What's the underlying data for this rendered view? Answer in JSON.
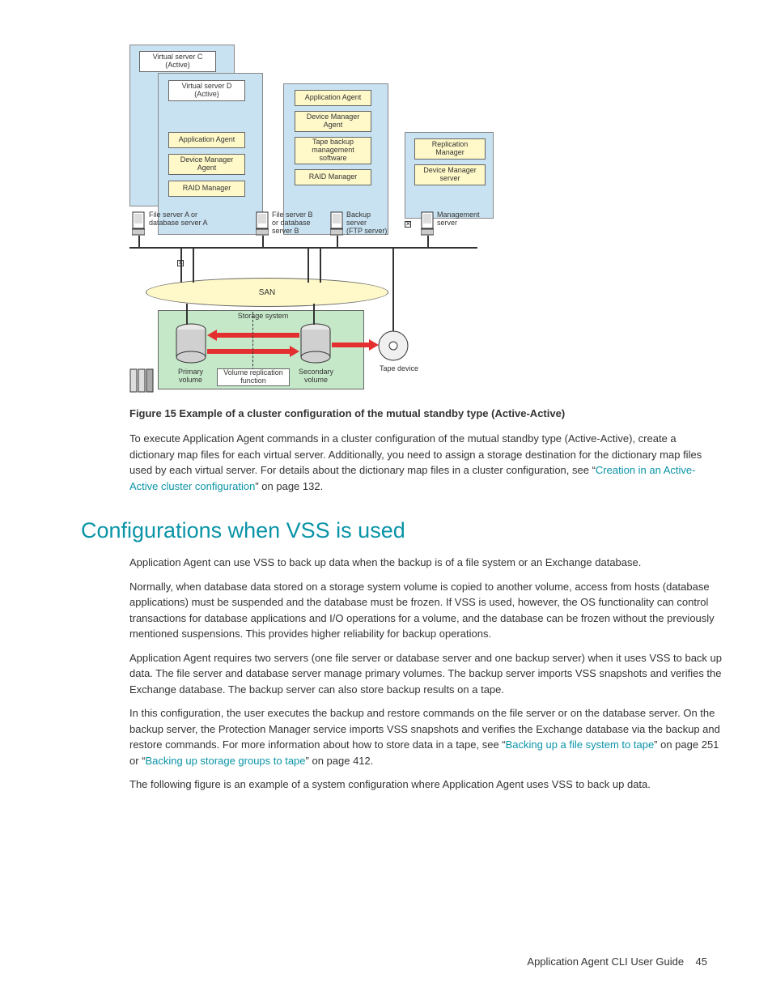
{
  "diagram": {
    "bg_blue": "#c9e2f1",
    "bg_yellow": "#fff9c9",
    "bg_green": "#c5e8c9",
    "bg_white": "#ffffff",
    "border_color": "#666666",
    "font_size_box": 9,
    "boxes": {
      "virtual_c": "Virtual server C\n(Active)",
      "virtual_d": "Virtual server D\n(Active)",
      "app_agent1": "Application Agent",
      "dev_agent1": "Device Manager\nAgent",
      "raid1": "RAID Manager",
      "app_agent2": "Application Agent",
      "dev_agent2": "Device Manager\nAgent",
      "tape_mgmt": "Tape backup\nmanagement\nsoftware",
      "raid2": "RAID Manager",
      "repl_mgr": "Replication\nManager",
      "dev_mgr_srv": "Device Manager\nserver"
    },
    "server_labels": {
      "a": "File server A or\ndatabase server A",
      "b": "File server B\nor database\nserver B",
      "backup": "Backup\nserver\n(FTP server)",
      "mgmt": "Management\nserver"
    },
    "san": "SAN",
    "storage_system": "Storage system",
    "primary_vol": "Primary\nvolume",
    "repl_func": "Volume replication\nfunction",
    "secondary_vol": "Secondary\nvolume",
    "tape_device": "Tape device",
    "arrow_color": "#e32f2f"
  },
  "figure_caption": "Figure 15 Example of a cluster configuration of the mutual standby type (Active-Active)",
  "paragraphs": {
    "p1_a": "To execute Application Agent commands in a cluster configuration of the mutual standby type (Active-Active), create a dictionary map files for each virtual server. Additionally, you need to assign a storage destination for the dictionary map files used by each virtual server. For details about the dictionary map files in a cluster configuration, see “",
    "p1_link": "Creation in an Active-Active cluster configuration",
    "p1_b": "” on page 132."
  },
  "heading": "Configurations when VSS is used",
  "section": {
    "p2": "Application Agent can use VSS to back up data when the backup is of a file system or an Exchange database.",
    "p3": "Normally, when database data stored on a storage system volume is copied to another volume, access from hosts (database applications) must be suspended and the database must be frozen. If VSS is used, however, the OS functionality can control transactions for database applications and I/O operations for a volume, and the database can be frozen without the previously mentioned suspensions. This provides higher reliability for backup operations.",
    "p4": "Application Agent requires two servers (one file server or database server and one backup server) when it uses VSS to back up data. The file server and database server manage primary volumes. The backup server imports VSS snapshots and verifies the Exchange database. The backup server can also store backup results on a tape.",
    "p5_a": "In this configuration, the user executes the backup and restore commands on the file server or on the database server. On the backup server, the Protection Manager service imports VSS snapshots and verifies the Exchange database via the backup and restore commands. For more information about how to store data in a tape, see “",
    "p5_link1": "Backing up a file system to tape",
    "p5_b": "” on page 251 or “",
    "p5_link2": "Backing up storage groups to tape",
    "p5_c": "” on page 412.",
    "p6": "The following figure is an example of a system configuration where Application Agent uses VSS to back up data."
  },
  "footer": {
    "title": "Application Agent CLI User Guide",
    "page": "45"
  },
  "colors": {
    "link": "#0a94a7",
    "heading": "#0a94a7",
    "text": "#333333"
  },
  "typography": {
    "body_fontsize": 13,
    "heading_fontsize": 27,
    "caption_fontsize": 13
  }
}
